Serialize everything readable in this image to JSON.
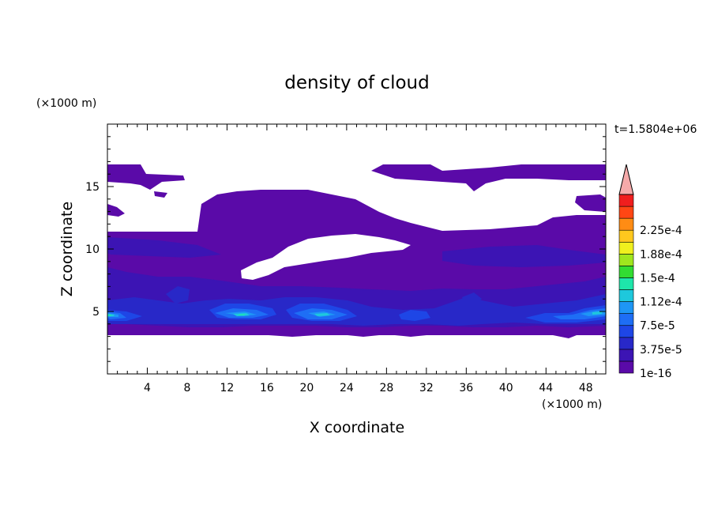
{
  "chart_data": {
    "type": "heatmap",
    "title": "density of cloud",
    "xlabel": "X coordinate",
    "ylabel": "Z coordinate",
    "x_unit": "(×1000 m)",
    "y_unit": "(×1000 m)",
    "time_label": "t=1.5804e+06",
    "xlim": [
      0,
      50
    ],
    "ylim": [
      0,
      20
    ],
    "x_ticks": [
      "4",
      "8",
      "12",
      "16",
      "20",
      "24",
      "28",
      "32",
      "36",
      "40",
      "44",
      "48"
    ],
    "y_ticks": [
      "5",
      "10",
      "15"
    ],
    "colorbar": {
      "labels": [
        "1e-16",
        "3.75e-5",
        "7.5e-5",
        "1.12e-4",
        "1.5e-4",
        "1.88e-4",
        "2.25e-4"
      ],
      "levels": [
        1e-16,
        1.875e-05,
        3.75e-05,
        5.625e-05,
        7.5e-05,
        9.375e-05,
        0.0001125,
        0.00013125,
        0.00015,
        0.00016875,
        0.0001875,
        0.00020625,
        0.000225,
        0.00024375
      ],
      "colors": [
        "#5a0aa8",
        "#3c14b4",
        "#2828c8",
        "#1e46e6",
        "#1e6ef5",
        "#1e96f5",
        "#1ec8dc",
        "#1ee6aa",
        "#32dc32",
        "#a0e61e",
        "#f0f01e",
        "#ffc81e",
        "#ff8c14",
        "#ff4614",
        "#f01e1e"
      ],
      "extend_color": "#f5aaaa"
    }
  }
}
